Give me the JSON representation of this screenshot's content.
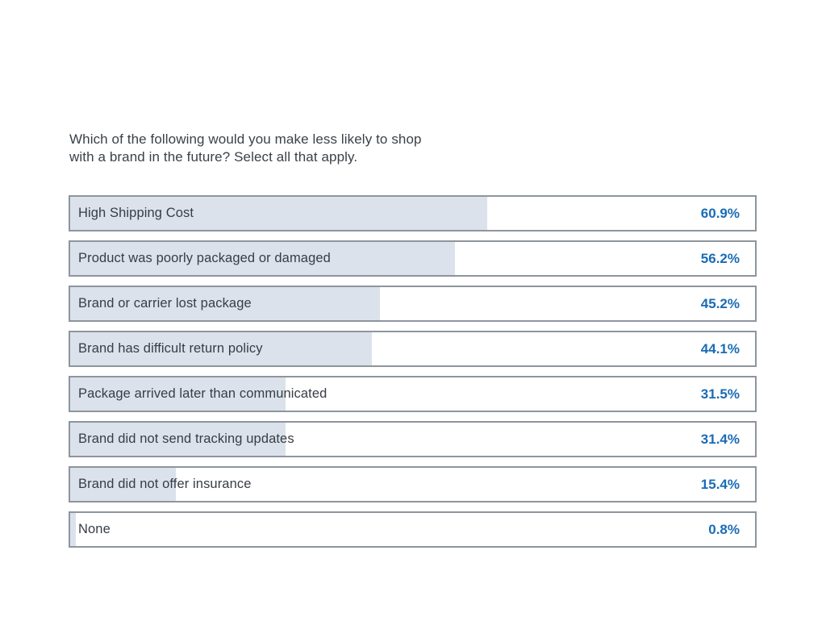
{
  "chart_data": {
    "type": "bar",
    "orientation": "horizontal",
    "title": "Which of the following would you make less likely to shop with a brand in the future? Select all that apply.",
    "categories": [
      "High Shipping Cost",
      "Product was poorly packaged or damaged",
      "Brand or carrier lost package",
      "Brand has difficult return policy",
      "Package arrived later than communicated",
      "Brand did not send tracking updates",
      "Brand did not offer insurance",
      "None"
    ],
    "values": [
      60.9,
      56.2,
      45.2,
      44.1,
      31.5,
      31.4,
      15.4,
      0.8
    ],
    "value_labels": [
      "60.9%",
      "56.2%",
      "45.2%",
      "44.1%",
      "31.5%",
      "31.4%",
      "15.4%",
      "0.8%"
    ],
    "xlim": [
      0,
      100
    ],
    "grid": false,
    "legend": false,
    "colors": {
      "bar_fill": "#dbe2eb",
      "bar_border": "#8e959d",
      "value_text": "#1a6cb5",
      "label_text": "#383d44",
      "title_text": "#3b4149",
      "background": "#ffffff"
    }
  }
}
